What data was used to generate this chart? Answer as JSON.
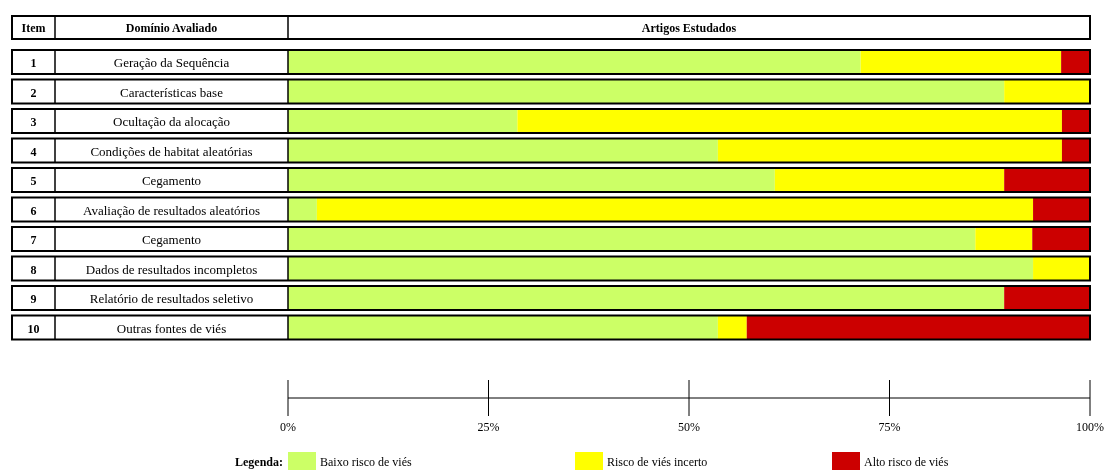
{
  "chart_data": {
    "type": "bar",
    "orientation": "horizontal",
    "stacked": true,
    "title": "Artigos Estudados",
    "ylabel": "Domínio Avaliado",
    "legend_title": "Legenda:",
    "legend": "bottom",
    "annotations": [
      "Item",
      "1",
      "2",
      "3",
      "4",
      "5",
      "6",
      "7",
      "8",
      "9",
      "10"
    ],
    "categories": [
      "Geração da Sequência",
      "Características base",
      "Ocultação da alocação",
      "Condições de habitat aleatórias",
      "Cegamento",
      "Avaliação de resultados aleatórios",
      "Cegamento",
      "Dados de resultados incompletos",
      "Relatório de resultados seletivo",
      "Outras fontes de viés"
    ],
    "series": [
      {
        "name": "Baixo risco de viés",
        "color": "#ccff66",
        "values": [
          71.4,
          89.3,
          28.6,
          53.6,
          60.7,
          3.6,
          85.7,
          92.9,
          89.3,
          53.6
        ]
      },
      {
        "name": "Risco de viés incerto",
        "color": "#ffff00",
        "values": [
          25,
          10.7,
          67.9,
          42.9,
          28.6,
          89.3,
          7.1,
          7.1,
          0,
          3.6
        ]
      },
      {
        "name": "Alto risco de viés",
        "color": "#cc0000",
        "values": [
          3.6,
          0,
          3.5,
          3.5,
          10.7,
          7.1,
          7.2,
          0,
          10.7,
          42.8
        ]
      }
    ],
    "xlim": [
      0,
      100
    ],
    "xticks": [
      {
        "value": 0,
        "label": "0%"
      },
      {
        "value": 25,
        "label": "25%"
      },
      {
        "value": 50,
        "label": "50%"
      },
      {
        "value": 75,
        "label": "75%"
      },
      {
        "value": 100,
        "label": "100%"
      }
    ]
  }
}
